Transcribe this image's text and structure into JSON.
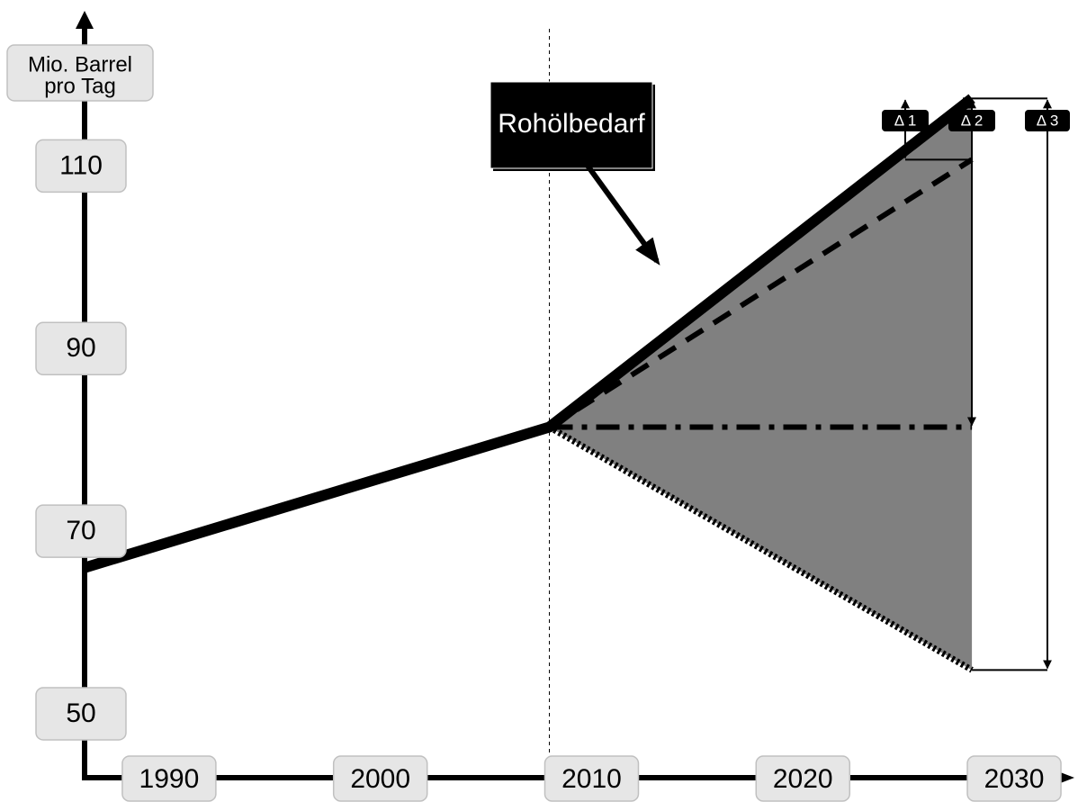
{
  "chart_data": {
    "type": "line",
    "title": "",
    "xlabel": "",
    "ylabel": "Mio. Barrel pro Tag",
    "ylabel_lines": [
      "Mio. Barrel",
      "pro Tag"
    ],
    "x_ticks": [
      1990,
      2000,
      2010,
      2020,
      2030
    ],
    "x_tick_labels": [
      "1990",
      "2000",
      "2010",
      "2020",
      "2030"
    ],
    "y_ticks": [
      50,
      70,
      90,
      110
    ],
    "y_tick_labels": [
      "50",
      "70",
      "90",
      "110"
    ],
    "xlim": [
      1986,
      2032
    ],
    "ylim": [
      43,
      127
    ],
    "forecast_start": 2008,
    "forecast_end": 2028,
    "grid": false,
    "series": [
      {
        "name": "Rohölbedarf",
        "style": "solid-thick",
        "x": [
          1986,
          2008,
          2028
        ],
        "y": [
          66,
          81.4,
          117.4
        ]
      },
      {
        "style": "dashed",
        "x": [
          2008,
          2028
        ],
        "y": [
          81.4,
          110.7
        ]
      },
      {
        "style": "dash-dot",
        "x": [
          2008,
          2028
        ],
        "y": [
          81.4,
          81.4
        ]
      },
      {
        "style": "dotted",
        "x": [
          2008,
          2028
        ],
        "y": [
          81.4,
          54.8
        ]
      }
    ],
    "annotations": [
      {
        "kind": "callout",
        "text": "Rohölbedarf"
      },
      {
        "kind": "delta",
        "text": "Δ 1"
      },
      {
        "kind": "delta",
        "text": "Δ 2"
      },
      {
        "kind": "delta",
        "text": "Δ 3"
      }
    ],
    "colors": {
      "shaded_area": "#808080",
      "lines": "#000000",
      "tick_box": "#e6e6e6"
    }
  }
}
